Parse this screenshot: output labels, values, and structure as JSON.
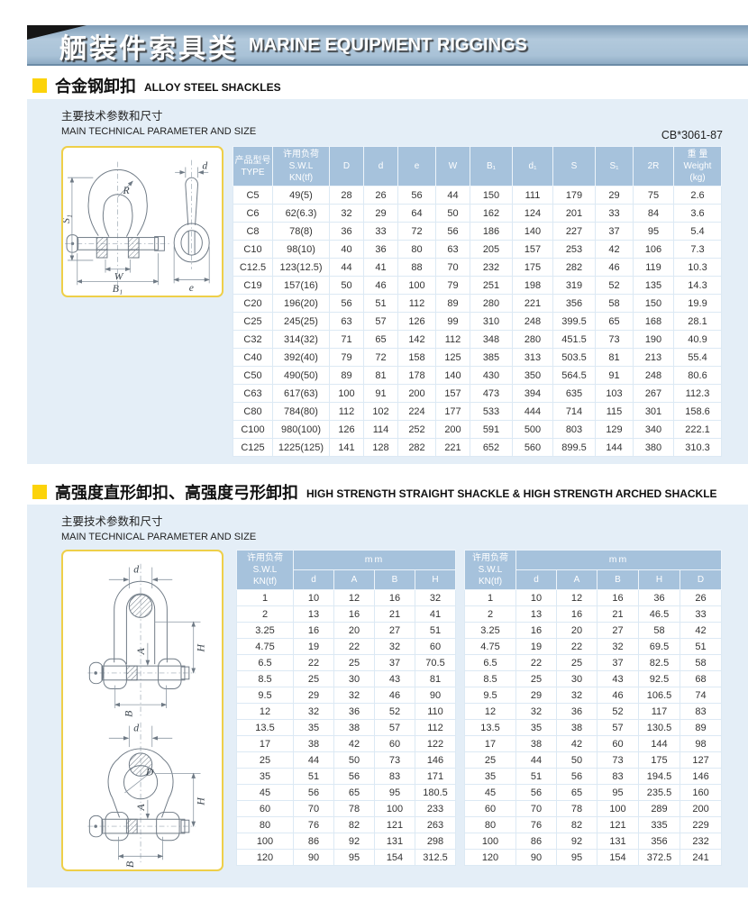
{
  "colors": {
    "accent_yellow": "#fcd30a",
    "banner_blue": "#a9c2d7",
    "panel_blue": "#e4eef7",
    "table_header_blue": "#a6c2dc"
  },
  "banner": {
    "title_zh": "舾装件索具类",
    "title_en": "MARINE EQUIPMENT RIGGINGS"
  },
  "section1": {
    "title_zh": "合金钢卸扣",
    "title_en": "ALLOY STEEL SHACKLES",
    "subtitle_zh": "主要技术参数和尺寸",
    "subtitle_en": "MAIN TECHNICAL PARAMETER AND SIZE",
    "standard": "CB*3061-87",
    "diagram": {
      "labels": {
        "s1": "S₁",
        "r": "R",
        "w": "W",
        "b1": "B₁",
        "d": "d",
        "e": "e"
      }
    },
    "table": {
      "headers": [
        [
          "产品型号",
          "TYPE"
        ],
        [
          "许用负荷",
          "S.W.L",
          "KN(tf)"
        ],
        [
          "D"
        ],
        [
          "d"
        ],
        [
          "e"
        ],
        [
          "W"
        ],
        [
          "B₁"
        ],
        [
          "d₁"
        ],
        [
          "S"
        ],
        [
          "S₁"
        ],
        [
          "2R"
        ],
        [
          "重 量",
          "Weight",
          "(kg)"
        ]
      ],
      "rows": [
        [
          "C5",
          "49(5)",
          "28",
          "26",
          "56",
          "44",
          "150",
          "111",
          "179",
          "29",
          "75",
          "2.6"
        ],
        [
          "C6",
          "62(6.3)",
          "32",
          "29",
          "64",
          "50",
          "162",
          "124",
          "201",
          "33",
          "84",
          "3.6"
        ],
        [
          "C8",
          "78(8)",
          "36",
          "33",
          "72",
          "56",
          "186",
          "140",
          "227",
          "37",
          "95",
          "5.4"
        ],
        [
          "C10",
          "98(10)",
          "40",
          "36",
          "80",
          "63",
          "205",
          "157",
          "253",
          "42",
          "106",
          "7.3"
        ],
        [
          "C12.5",
          "123(12.5)",
          "44",
          "41",
          "88",
          "70",
          "232",
          "175",
          "282",
          "46",
          "119",
          "10.3"
        ],
        [
          "C19",
          "157(16)",
          "50",
          "46",
          "100",
          "79",
          "251",
          "198",
          "319",
          "52",
          "135",
          "14.3"
        ],
        [
          "C20",
          "196(20)",
          "56",
          "51",
          "112",
          "89",
          "280",
          "221",
          "356",
          "58",
          "150",
          "19.9"
        ],
        [
          "C25",
          "245(25)",
          "63",
          "57",
          "126",
          "99",
          "310",
          "248",
          "399.5",
          "65",
          "168",
          "28.1"
        ],
        [
          "C32",
          "314(32)",
          "71",
          "65",
          "142",
          "112",
          "348",
          "280",
          "451.5",
          "73",
          "190",
          "40.9"
        ],
        [
          "C40",
          "392(40)",
          "79",
          "72",
          "158",
          "125",
          "385",
          "313",
          "503.5",
          "81",
          "213",
          "55.4"
        ],
        [
          "C50",
          "490(50)",
          "89",
          "81",
          "178",
          "140",
          "430",
          "350",
          "564.5",
          "91",
          "248",
          "80.6"
        ],
        [
          "C63",
          "617(63)",
          "100",
          "91",
          "200",
          "157",
          "473",
          "394",
          "635",
          "103",
          "267",
          "112.3"
        ],
        [
          "C80",
          "784(80)",
          "112",
          "102",
          "224",
          "177",
          "533",
          "444",
          "714",
          "115",
          "301",
          "158.6"
        ],
        [
          "C100",
          "980(100)",
          "126",
          "114",
          "252",
          "200",
          "591",
          "500",
          "803",
          "129",
          "340",
          "222.1"
        ],
        [
          "C125",
          "1225(125)",
          "141",
          "128",
          "282",
          "221",
          "652",
          "560",
          "899.5",
          "144",
          "380",
          "310.3"
        ]
      ]
    }
  },
  "section2": {
    "title_zh": "高强度直形卸扣、高强度弓形卸扣",
    "title_en": "HIGH STRENGTH STRAIGHT SHACKLE & HIGH STRENGTH ARCHED SHACKLE",
    "subtitle_zh": "主要技术参数和尺寸",
    "subtitle_en": "MAIN TECHNICAL PARAMETER AND SIZE",
    "diagram": {
      "labels_top": {
        "d": "d",
        "h": "H",
        "a": "A",
        "b": "B"
      },
      "labels_bottom": {
        "d": "d",
        "dd": "D",
        "h": "H",
        "a": "A",
        "b": "B"
      }
    },
    "straight_table": {
      "swl_lines": [
        "许用负荷",
        "S.W.L",
        "KN(tf)"
      ],
      "unit": "mm",
      "columns": [
        "d",
        "A",
        "B",
        "H"
      ],
      "rows": [
        [
          "1",
          "10",
          "12",
          "16",
          "32"
        ],
        [
          "2",
          "13",
          "16",
          "21",
          "41"
        ],
        [
          "3.25",
          "16",
          "20",
          "27",
          "51"
        ],
        [
          "4.75",
          "19",
          "22",
          "32",
          "60"
        ],
        [
          "6.5",
          "22",
          "25",
          "37",
          "70.5"
        ],
        [
          "8.5",
          "25",
          "30",
          "43",
          "81"
        ],
        [
          "9.5",
          "29",
          "32",
          "46",
          "90"
        ],
        [
          "12",
          "32",
          "36",
          "52",
          "110"
        ],
        [
          "13.5",
          "35",
          "38",
          "57",
          "112"
        ],
        [
          "17",
          "38",
          "42",
          "60",
          "122"
        ],
        [
          "25",
          "44",
          "50",
          "73",
          "146"
        ],
        [
          "35",
          "51",
          "56",
          "83",
          "171"
        ],
        [
          "45",
          "56",
          "65",
          "95",
          "180.5"
        ],
        [
          "60",
          "70",
          "78",
          "100",
          "233"
        ],
        [
          "80",
          "76",
          "82",
          "121",
          "263"
        ],
        [
          "100",
          "86",
          "92",
          "131",
          "298"
        ],
        [
          "120",
          "90",
          "95",
          "154",
          "312.5"
        ]
      ]
    },
    "arched_table": {
      "swl_lines": [
        "许用负荷",
        "S.W.L",
        "KN(tf)"
      ],
      "unit": "mm",
      "columns": [
        "d",
        "A",
        "B",
        "H",
        "D"
      ],
      "rows": [
        [
          "1",
          "10",
          "12",
          "16",
          "36",
          "26"
        ],
        [
          "2",
          "13",
          "16",
          "21",
          "46.5",
          "33"
        ],
        [
          "3.25",
          "16",
          "20",
          "27",
          "58",
          "42"
        ],
        [
          "4.75",
          "19",
          "22",
          "32",
          "69.5",
          "51"
        ],
        [
          "6.5",
          "22",
          "25",
          "37",
          "82.5",
          "58"
        ],
        [
          "8.5",
          "25",
          "30",
          "43",
          "92.5",
          "68"
        ],
        [
          "9.5",
          "29",
          "32",
          "46",
          "106.5",
          "74"
        ],
        [
          "12",
          "32",
          "36",
          "52",
          "117",
          "83"
        ],
        [
          "13.5",
          "35",
          "38",
          "57",
          "130.5",
          "89"
        ],
        [
          "17",
          "38",
          "42",
          "60",
          "144",
          "98"
        ],
        [
          "25",
          "44",
          "50",
          "73",
          "175",
          "127"
        ],
        [
          "35",
          "51",
          "56",
          "83",
          "194.5",
          "146"
        ],
        [
          "45",
          "56",
          "65",
          "95",
          "235.5",
          "160"
        ],
        [
          "60",
          "70",
          "78",
          "100",
          "289",
          "200"
        ],
        [
          "80",
          "76",
          "82",
          "121",
          "335",
          "229"
        ],
        [
          "100",
          "86",
          "92",
          "131",
          "356",
          "232"
        ],
        [
          "120",
          "90",
          "95",
          "154",
          "372.5",
          "241"
        ]
      ]
    }
  }
}
